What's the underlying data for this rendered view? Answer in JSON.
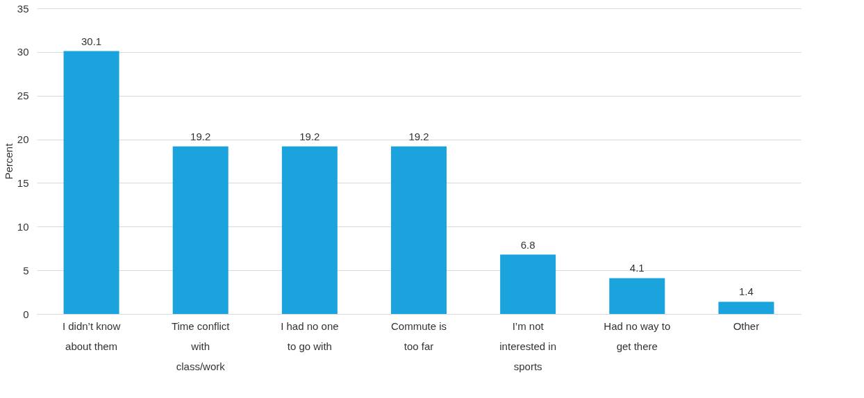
{
  "chart_data": {
    "type": "bar",
    "ylabel": "Percent",
    "categories": [
      "I didn’t know about them",
      "Time conflict with class/work",
      "I had no one to go with",
      "Commute is too far",
      "I’m not interested in sports",
      "Had no way to get there",
      "Other"
    ],
    "values": [
      30.1,
      19.2,
      19.2,
      19.2,
      6.8,
      4.1,
      1.4
    ],
    "color": "#1aa3dc",
    "ylim": [
      0,
      35
    ],
    "yticks": [
      0,
      5,
      10,
      15,
      20,
      25,
      30,
      35
    ],
    "grid": "y",
    "data_labels": true
  }
}
